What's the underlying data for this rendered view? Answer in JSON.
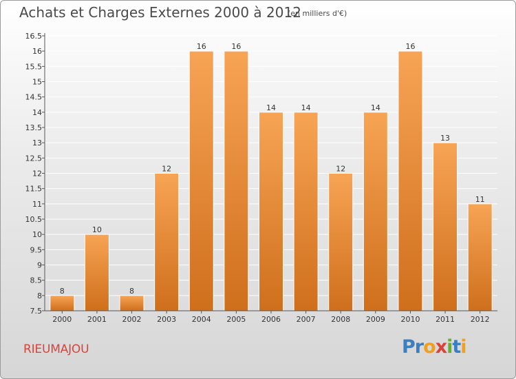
{
  "title": "Achats et Charges Externes 2000 à 2012",
  "subtitle": "(en milliers d'€)",
  "commune": "RIEUMAJOU",
  "logo": {
    "letters": [
      "P",
      "r",
      "o",
      "x",
      "i",
      "t",
      "i"
    ],
    "colors": [
      "#3a7fc1",
      "#3a7fc1",
      "#f0a020",
      "#d8443c",
      "#6aae2e",
      "#3a7fc1",
      "#f0a020"
    ]
  },
  "colors": {
    "bar_top": "#f7a455",
    "bar_bottom": "#cf6f1c",
    "grid": "#ffffff",
    "axis": "#555555"
  },
  "chart_data": {
    "type": "bar",
    "title": "Achats et Charges Externes 2000 à 2012",
    "subtitle": "(en milliers d'€)",
    "categories": [
      "2000",
      "2001",
      "2002",
      "2003",
      "2004",
      "2005",
      "2006",
      "2007",
      "2008",
      "2009",
      "2010",
      "2011",
      "2012"
    ],
    "values": [
      8,
      10,
      8,
      12,
      16,
      16,
      14,
      14,
      12,
      14,
      16,
      13,
      11
    ],
    "ylim": [
      7.5,
      16.5
    ],
    "yticks": [
      7.5,
      8,
      8.5,
      9,
      9.5,
      10,
      10.5,
      11,
      11.5,
      12,
      12.5,
      13,
      13.5,
      14,
      14.5,
      15,
      15.5,
      16,
      16.5
    ],
    "grid": true,
    "legend": "none",
    "data_labels": true
  }
}
